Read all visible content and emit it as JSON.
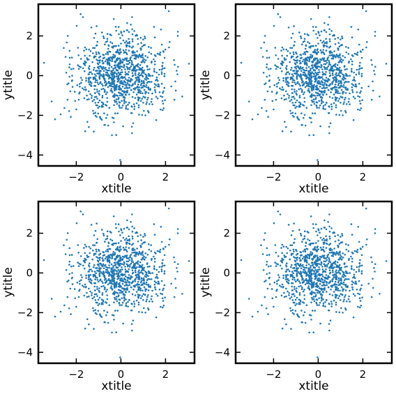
{
  "chart_data": [
    {
      "type": "scatter",
      "title": "",
      "xlabel": "xtitle",
      "ylabel": "ytitle",
      "xlim": [
        -3.7,
        3.3
      ],
      "ylim": [
        -4.55,
        3.6
      ],
      "xticks": [
        -2,
        0,
        2
      ],
      "yticks": [
        -4,
        -2,
        0,
        2
      ],
      "grid": false,
      "point_color": "#1f77b4",
      "distribution": "approximately bivariate standard normal, n ≈ 1000",
      "series": [
        {
          "name": "",
          "x": [
            -0.03,
            0.5,
            2.15,
            3.05,
            -3.45,
            -2.3,
            -1.8,
            -1.7,
            -1.6,
            0.5,
            -3.1,
            -2.95,
            -2.7,
            2.55,
            2.5,
            0.55,
            -0.1,
            -0.32,
            0.28,
            0.6,
            -1.5,
            0.8,
            1.35,
            1.1,
            -1.2,
            -0.4,
            0.1,
            0.9,
            -0.75,
            1.65,
            -2.0,
            2.75,
            -0.6,
            0.35,
            -0.9,
            0.15,
            1.5,
            -1.05,
            0.7,
            -0.2
          ],
          "y": [
            -4.25,
            2.95,
            3.25,
            0.6,
            0.65,
            1.25,
            3.1,
            2.95,
            -2.8,
            -2.9,
            -1.3,
            -2.2,
            -1.95,
            2.0,
            0.25,
            -2.4,
            2.45,
            2.85,
            2.65,
            2.25,
            0.8,
            -1.6,
            1.4,
            -2.0,
            1.9,
            -3.0,
            -2.55,
            1.3,
            -1.9,
            -1.15,
            -1.7,
            -1.05,
            2.1,
            1.85,
            0.45,
            -0.85,
            0.2,
            -0.35,
            0.95,
            0.1
          ]
        }
      ]
    },
    {
      "type": "scatter",
      "title": "",
      "xlabel": "xtitle",
      "ylabel": "ytitle",
      "xlim": [
        -3.7,
        3.3
      ],
      "ylim": [
        -4.55,
        3.6
      ],
      "xticks": [
        -2,
        0,
        2
      ],
      "yticks": [
        -4,
        -2,
        0,
        2
      ],
      "grid": false,
      "point_color": "#1f77b4",
      "distribution": "approximately bivariate standard normal, n ≈ 1000",
      "series": [
        {
          "name": "",
          "x": [
            -0.03,
            0.5,
            2.15,
            3.05,
            -3.45,
            -2.3,
            -1.8,
            -1.7,
            -1.6,
            0.5,
            -3.1,
            -2.95,
            -2.7,
            2.55,
            2.5,
            0.55,
            -0.1,
            -0.32,
            0.28,
            0.6,
            -1.5,
            0.8,
            1.35,
            1.1,
            -1.2,
            -0.4,
            0.1,
            0.9,
            -0.75,
            1.65,
            -2.0,
            2.75,
            -0.6,
            0.35,
            -0.9,
            0.15,
            1.5,
            -1.05,
            0.7,
            -0.2
          ],
          "y": [
            -4.25,
            2.95,
            3.25,
            0.6,
            0.65,
            1.25,
            3.1,
            2.95,
            -2.8,
            -2.9,
            -1.3,
            -2.2,
            -1.95,
            2.0,
            0.25,
            -2.4,
            2.45,
            2.85,
            2.65,
            2.25,
            0.8,
            -1.6,
            1.4,
            -2.0,
            1.9,
            -3.0,
            -2.55,
            1.3,
            -1.9,
            -1.15,
            -1.7,
            -1.05,
            2.1,
            1.85,
            0.45,
            -0.85,
            0.2,
            -0.35,
            0.95,
            0.1
          ]
        }
      ]
    },
    {
      "type": "scatter",
      "title": "",
      "xlabel": "xtitle",
      "ylabel": "ytitle",
      "xlim": [
        -3.7,
        3.3
      ],
      "ylim": [
        -4.55,
        3.6
      ],
      "xticks": [
        -2,
        0,
        2
      ],
      "yticks": [
        -4,
        -2,
        0,
        2
      ],
      "grid": false,
      "point_color": "#1f77b4",
      "distribution": "approximately bivariate standard normal, n ≈ 1000",
      "series": [
        {
          "name": "",
          "x": [
            -0.03,
            0.5,
            2.15,
            3.05,
            -3.45,
            -2.3,
            -1.8,
            -1.7,
            -1.6,
            0.5,
            -3.1,
            -2.95,
            -2.7,
            2.55,
            2.5,
            0.55,
            -0.1,
            -0.32,
            0.28,
            0.6,
            -1.5,
            0.8,
            1.35,
            1.1,
            -1.2,
            -0.4,
            0.1,
            0.9,
            -0.75,
            1.65,
            -2.0,
            2.75,
            -0.6,
            0.35,
            -0.9,
            0.15,
            1.5,
            -1.05,
            0.7,
            -0.2
          ],
          "y": [
            -4.25,
            2.95,
            3.25,
            0.6,
            0.65,
            1.25,
            3.1,
            2.95,
            -2.8,
            -2.9,
            -1.3,
            -2.2,
            -1.95,
            2.0,
            0.25,
            -2.4,
            2.45,
            2.85,
            2.65,
            2.25,
            0.8,
            -1.6,
            1.4,
            -2.0,
            1.9,
            -3.0,
            -2.55,
            1.3,
            -1.9,
            -1.15,
            -1.7,
            -1.05,
            2.1,
            1.85,
            0.45,
            -0.85,
            0.2,
            -0.35,
            0.95,
            0.1
          ]
        }
      ]
    },
    {
      "type": "scatter",
      "title": "",
      "xlabel": "xtitle",
      "ylabel": "ytitle",
      "xlim": [
        -3.7,
        3.3
      ],
      "ylim": [
        -4.55,
        3.6
      ],
      "xticks": [
        -2,
        0,
        2
      ],
      "yticks": [
        -4,
        -2,
        0,
        2
      ],
      "grid": false,
      "point_color": "#1f77b4",
      "distribution": "approximately bivariate standard normal, n ≈ 1000",
      "series": [
        {
          "name": "",
          "x": [
            -0.03,
            0.5,
            2.15,
            3.05,
            -3.45,
            -2.3,
            -1.8,
            -1.7,
            -1.6,
            0.5,
            -3.1,
            -2.95,
            -2.7,
            2.55,
            2.5,
            0.55,
            -0.1,
            -0.32,
            0.28,
            0.6,
            -1.5,
            0.8,
            1.35,
            1.1,
            -1.2,
            -0.4,
            0.1,
            0.9,
            -0.75,
            1.65,
            -2.0,
            2.75,
            -0.6,
            0.35,
            -0.9,
            0.15,
            1.5,
            -1.05,
            0.7,
            -0.2
          ],
          "y": [
            -4.25,
            2.95,
            3.25,
            0.6,
            0.65,
            1.25,
            3.1,
            2.95,
            -2.8,
            -2.9,
            -1.3,
            -2.2,
            -1.95,
            2.0,
            0.25,
            -2.4,
            2.45,
            2.85,
            2.65,
            2.25,
            0.8,
            -1.6,
            1.4,
            -2.0,
            1.9,
            -3.0,
            -2.55,
            1.3,
            -1.9,
            -1.15,
            -1.7,
            -1.05,
            2.1,
            1.85,
            0.45,
            -0.85,
            0.2,
            -0.35,
            0.95,
            0.1
          ]
        }
      ]
    }
  ]
}
